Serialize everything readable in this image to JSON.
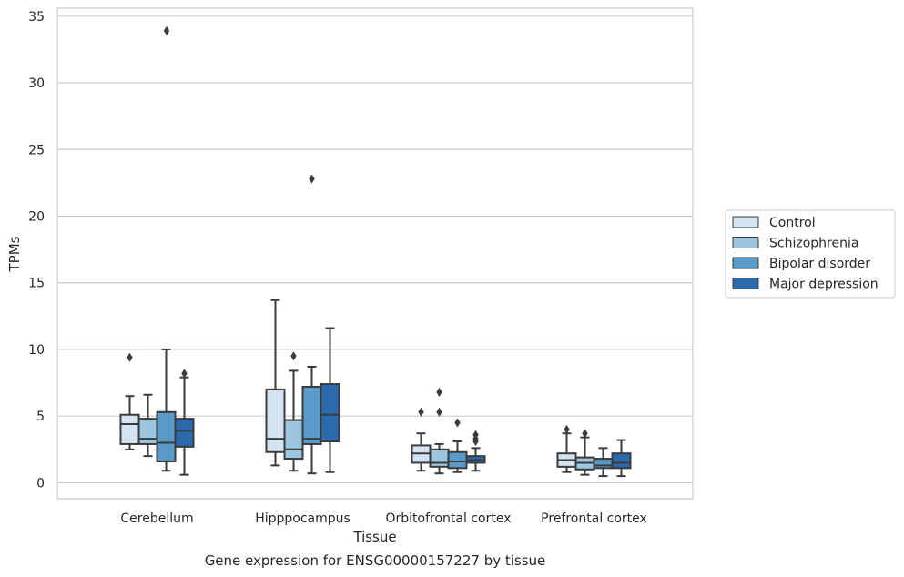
{
  "chart_data": {
    "type": "box",
    "title": "",
    "caption": "Gene expression for ENSG00000157227 by tissue",
    "xlabel": "Tissue",
    "ylabel": "TPMs",
    "ylim": [
      -1.2,
      35.6
    ],
    "yticks": [
      0,
      5,
      10,
      15,
      20,
      25,
      30,
      35
    ],
    "grid": true,
    "legend_position": "right",
    "categories": [
      "Cerebellum",
      "Hipppocampus",
      "Orbitofrontal cortex",
      "Prefrontal cortex"
    ],
    "series": [
      {
        "name": "Control",
        "color": "#d4e3f1",
        "boxes": [
          {
            "whislo": 2.5,
            "q1": 2.9,
            "med": 4.4,
            "q3": 5.1,
            "whishi": 6.5,
            "fliers": [
              9.4
            ]
          },
          {
            "whislo": 1.3,
            "q1": 2.3,
            "med": 3.3,
            "q3": 7.0,
            "whishi": 13.7,
            "fliers": []
          },
          {
            "whislo": 0.9,
            "q1": 1.5,
            "med": 2.2,
            "q3": 2.8,
            "whishi": 3.7,
            "fliers": [
              5.3
            ]
          },
          {
            "whislo": 0.8,
            "q1": 1.2,
            "med": 1.7,
            "q3": 2.2,
            "whishi": 3.7,
            "fliers": [
              4.0
            ]
          }
        ]
      },
      {
        "name": "Schizophrenia",
        "color": "#9cc5de",
        "boxes": [
          {
            "whislo": 2.0,
            "q1": 2.9,
            "med": 3.3,
            "q3": 4.8,
            "whishi": 6.6,
            "fliers": []
          },
          {
            "whislo": 0.9,
            "q1": 1.8,
            "med": 2.5,
            "q3": 4.7,
            "whishi": 8.4,
            "fliers": [
              9.5
            ]
          },
          {
            "whislo": 0.7,
            "q1": 1.2,
            "med": 1.5,
            "q3": 2.5,
            "whishi": 2.9,
            "fliers": [
              5.3,
              6.8
            ]
          },
          {
            "whislo": 0.6,
            "q1": 1.0,
            "med": 1.5,
            "q3": 1.9,
            "whishi": 3.4,
            "fliers": [
              3.7
            ]
          }
        ]
      },
      {
        "name": "Bipolar disorder",
        "color": "#5a9ac9",
        "boxes": [
          {
            "whislo": 0.9,
            "q1": 1.6,
            "med": 3.0,
            "q3": 5.3,
            "whishi": 10.0,
            "fliers": []
          },
          {
            "whislo": 0.7,
            "q1": 2.9,
            "med": 3.3,
            "q3": 7.2,
            "whishi": 8.7,
            "fliers": [
              22.8
            ]
          },
          {
            "whislo": 0.8,
            "q1": 1.1,
            "med": 1.6,
            "q3": 2.3,
            "whishi": 3.1,
            "fliers": [
              4.5
            ]
          },
          {
            "whislo": 0.5,
            "q1": 1.1,
            "med": 1.3,
            "q3": 1.8,
            "whishi": 2.6,
            "fliers": []
          }
        ]
      },
      {
        "name": "Major depression",
        "color": "#2b6aac",
        "boxes": [
          {
            "whislo": 0.6,
            "q1": 2.7,
            "med": 3.9,
            "q3": 4.8,
            "whishi": 7.9,
            "fliers": [
              8.2
            ]
          },
          {
            "whislo": 0.8,
            "q1": 3.1,
            "med": 5.1,
            "q3": 7.4,
            "whishi": 11.6,
            "fliers": []
          },
          {
            "whislo": 0.9,
            "q1": 1.5,
            "med": 1.7,
            "q3": 2.0,
            "whishi": 2.6,
            "fliers": [
              3.1,
              3.3,
              3.6
            ]
          },
          {
            "whislo": 0.5,
            "q1": 1.1,
            "med": 1.5,
            "q3": 2.2,
            "whishi": 3.2,
            "fliers": []
          }
        ]
      }
    ],
    "outlier_above_ylim_note": "",
    "cerebellum_top_outlier": 33.9
  }
}
